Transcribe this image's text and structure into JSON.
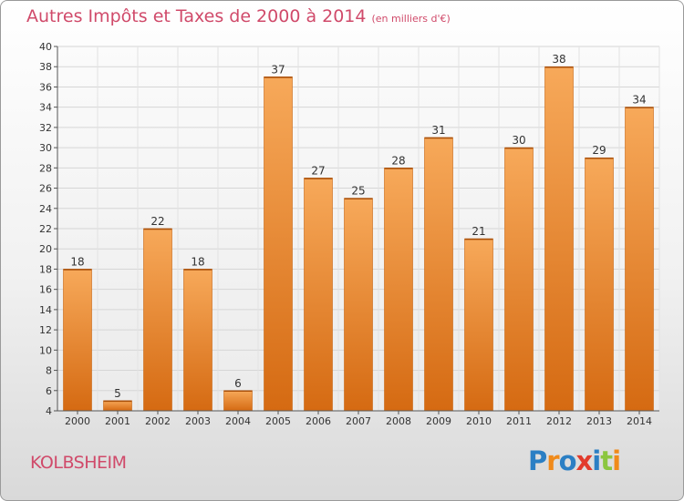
{
  "title": "Autres Impôts et Taxes de 2000 à 2014",
  "title_unit": "(en milliers d'€)",
  "place": "KOLBSHEIM",
  "logo": {
    "letters": [
      "P",
      "r",
      "o",
      "x",
      "i",
      "t",
      "i"
    ],
    "colors": [
      "#2b7fc4",
      "#f08a1a",
      "#2b7fc4",
      "#e23b2c",
      "#2b7fc4",
      "#8cc63f",
      "#f08a1a"
    ]
  },
  "colors": {
    "bar_top": "#f7a95a",
    "bar_bottom": "#d56a12",
    "text": "#d04a6a"
  },
  "chart_data": {
    "type": "bar",
    "categories": [
      "2000",
      "2001",
      "2002",
      "2003",
      "2004",
      "2005",
      "2006",
      "2007",
      "2008",
      "2009",
      "2010",
      "2011",
      "2012",
      "2013",
      "2014"
    ],
    "values": [
      18,
      5,
      22,
      18,
      6,
      37,
      27,
      25,
      28,
      31,
      21,
      30,
      38,
      29,
      34
    ],
    "ylim": [
      4,
      40
    ],
    "yticks": [
      4,
      6,
      8,
      10,
      12,
      14,
      16,
      18,
      20,
      22,
      24,
      26,
      28,
      30,
      32,
      34,
      36,
      38,
      40
    ],
    "grid": true
  }
}
